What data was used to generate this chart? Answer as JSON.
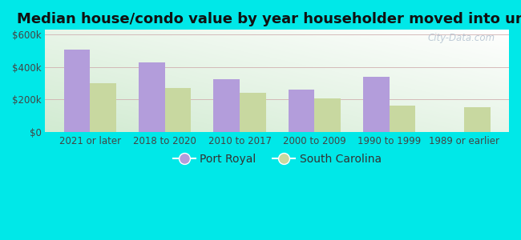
{
  "title": "Median house/condo value by year householder moved into unit",
  "categories": [
    "2021 or later",
    "2018 to 2020",
    "2010 to 2017",
    "2000 to 2009",
    "1990 to 1999",
    "1989 or earlier"
  ],
  "port_royal": [
    510000,
    430000,
    325000,
    260000,
    340000,
    0
  ],
  "south_carolina": [
    300000,
    270000,
    240000,
    205000,
    165000,
    155000
  ],
  "port_royal_color": "#b39ddb",
  "south_carolina_color": "#c8d8a0",
  "outer_bg_color": "#00e8e8",
  "yticks": [
    0,
    200000,
    400000,
    600000
  ],
  "ytick_labels": [
    "$0",
    "$200k",
    "$400k",
    "$600k"
  ],
  "ylim": [
    0,
    630000
  ],
  "title_fontsize": 13,
  "legend_fontsize": 10,
  "tick_fontsize": 8.5,
  "watermark": "City-Data.com"
}
